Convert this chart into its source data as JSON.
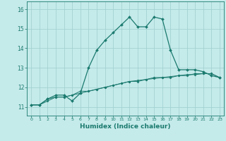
{
  "title": "",
  "xlabel": "Humidex (Indice chaleur)",
  "bg_color": "#c5eaea",
  "grid_color": "#9ecece",
  "line_color": "#1a7a6e",
  "x_ticks": [
    0,
    1,
    2,
    3,
    4,
    5,
    6,
    7,
    8,
    9,
    10,
    11,
    12,
    13,
    14,
    15,
    16,
    17,
    18,
    19,
    20,
    21,
    22,
    23
  ],
  "y_ticks": [
    11,
    12,
    13,
    14,
    15,
    16
  ],
  "ylim": [
    10.55,
    16.4
  ],
  "xlim": [
    -0.5,
    23.5
  ],
  "series1_x": [
    0,
    1,
    2,
    3,
    4,
    5,
    6,
    7,
    8,
    9,
    10,
    11,
    12,
    13,
    14,
    15,
    16,
    17,
    18,
    19,
    20,
    21,
    22,
    23
  ],
  "series1_y": [
    11.1,
    11.1,
    11.4,
    11.6,
    11.6,
    11.3,
    11.7,
    13.0,
    13.9,
    14.4,
    14.8,
    15.2,
    15.6,
    15.1,
    15.1,
    15.6,
    15.5,
    13.9,
    12.9,
    12.9,
    12.9,
    12.8,
    12.6,
    12.5
  ],
  "series2_x": [
    0,
    1,
    2,
    3,
    4,
    5,
    6,
    7,
    8,
    9,
    10,
    11,
    12,
    13,
    14,
    15,
    16,
    17,
    18,
    19,
    20,
    21,
    22,
    23
  ],
  "series2_y": [
    11.1,
    11.1,
    11.4,
    11.5,
    11.5,
    11.6,
    11.7,
    11.8,
    11.9,
    12.0,
    12.1,
    12.2,
    12.3,
    12.3,
    12.4,
    12.5,
    12.5,
    12.5,
    12.6,
    12.6,
    12.7,
    12.7,
    12.7,
    12.5
  ],
  "series3_x": [
    0,
    1,
    2,
    3,
    4,
    5,
    6,
    7,
    8,
    9,
    10,
    11,
    12,
    13,
    14,
    15,
    16,
    17,
    18,
    19,
    20,
    21,
    22,
    23
  ],
  "series3_y": [
    11.1,
    11.1,
    11.3,
    11.5,
    11.5,
    11.6,
    11.8,
    11.8,
    11.9,
    12.0,
    12.1,
    12.2,
    12.3,
    12.35,
    12.4,
    12.45,
    12.5,
    12.55,
    12.6,
    12.65,
    12.65,
    12.7,
    12.7,
    12.5
  ]
}
